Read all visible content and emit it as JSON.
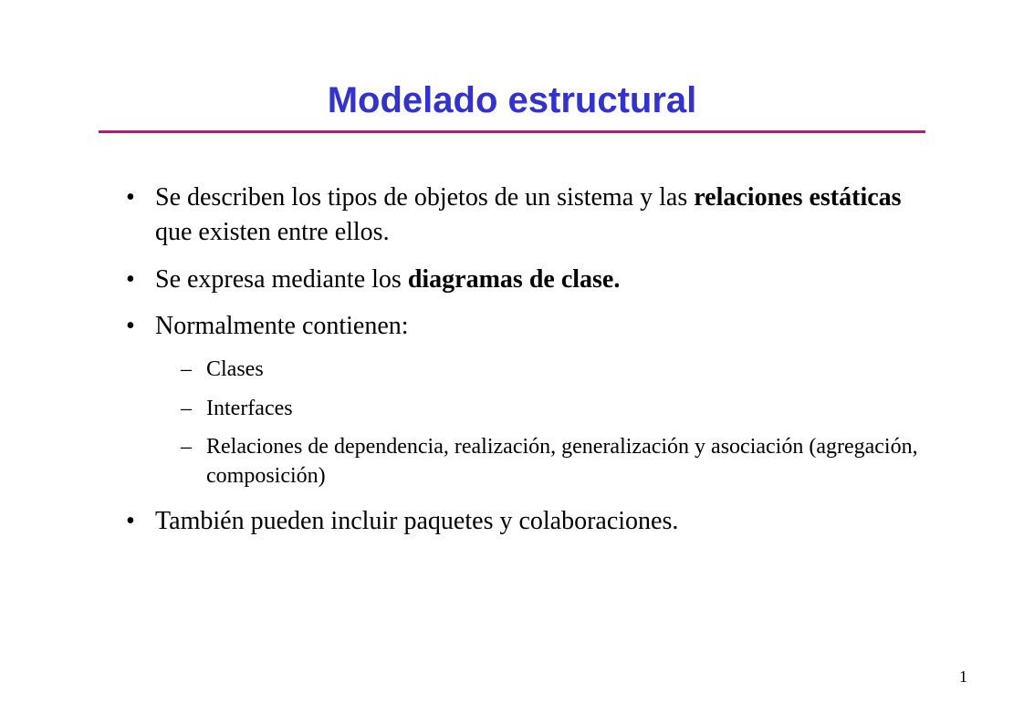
{
  "slide": {
    "title": "Modelado estructural",
    "title_color": "#3333cc",
    "title_font": "Verdana",
    "title_fontsize": 40,
    "underline_color": "#e6007e",
    "underline_width": 906,
    "background_color": "#ffffff",
    "body_font": "Times New Roman",
    "body_fontsize": 28,
    "sub_fontsize": 24,
    "text_color": "#000000",
    "bullets": [
      {
        "pre": "Se describen los tipos de objetos de un sistema y las ",
        "bold": "relaciones estáticas",
        "post": " que existen entre ellos."
      },
      {
        "pre": "Se expresa mediante los ",
        "bold": "diagramas de clase.",
        "post": ""
      },
      {
        "pre": "Normalmente contienen:",
        "bold": "",
        "post": "",
        "sub": [
          "Clases",
          "Interfaces",
          "Relaciones de dependencia, realización, generalización y asociación (agregación, composición)"
        ]
      },
      {
        "pre": "También pueden incluir paquetes y colaboraciones.",
        "bold": "",
        "post": ""
      }
    ],
    "page_number": "1"
  }
}
